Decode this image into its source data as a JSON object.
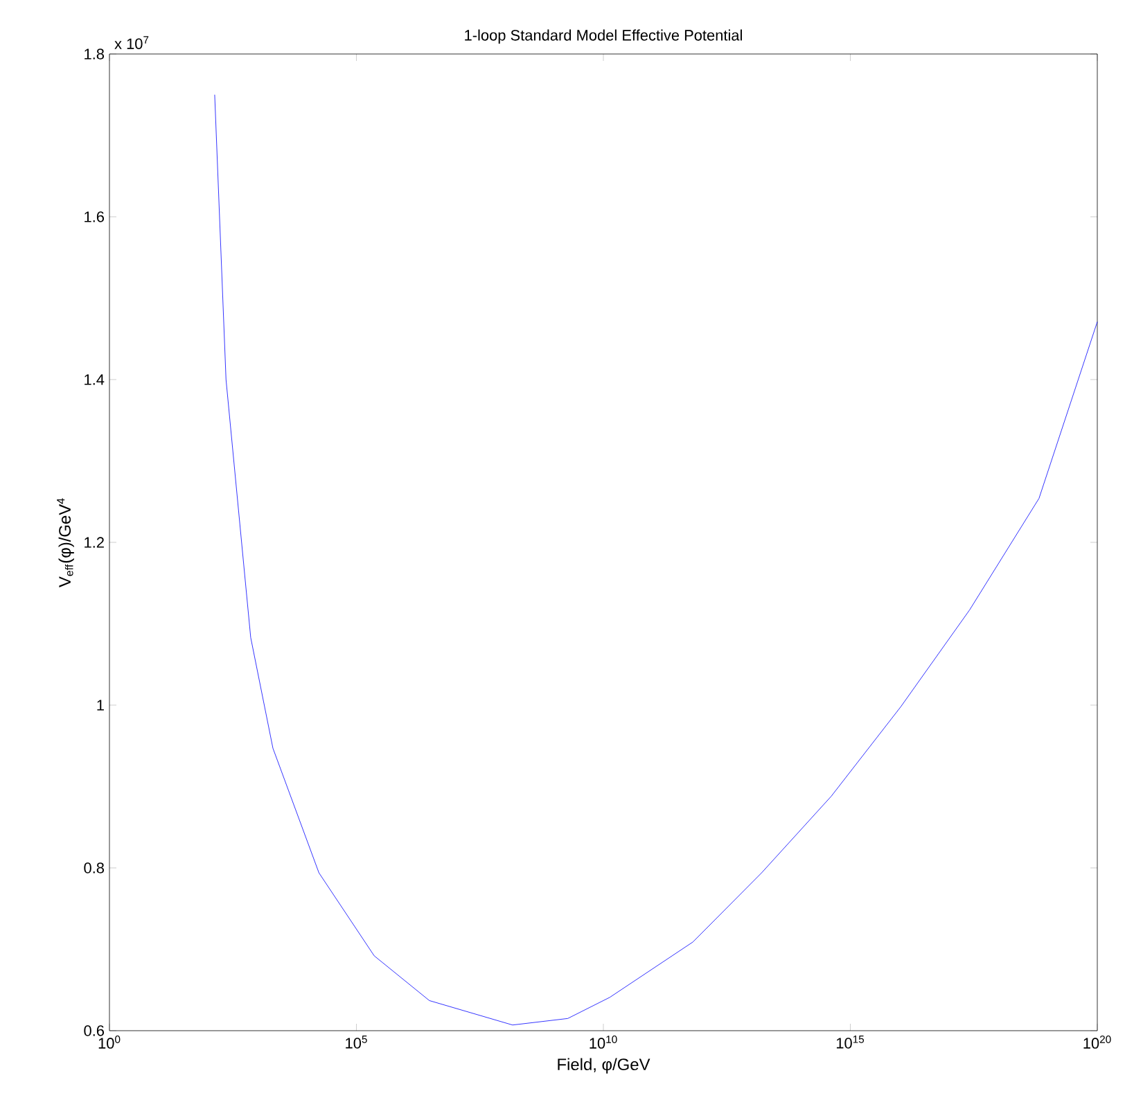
{
  "chart_data": {
    "type": "line",
    "title": "1-loop Standard Model Effective Potential",
    "xlabel": "Field, φ/GeV",
    "ylabel": "V$_{eff}$(φ)/GeV$^{4}$",
    "annotations": [
      "x 10$^{7}$"
    ],
    "log": "x",
    "grid": false,
    "marker": "none",
    "line_style": "solid",
    "x": [
      135,
      229,
      724,
      2040,
      17400,
      229000,
      3000000.0,
      145000000.0,
      1900000000.0,
      13500000000.0,
      650000000000.0,
      16000000000000.0,
      410000000000000.0,
      1.05e+16,
      2.6e+17,
      6.6e+18,
      1e+20
    ],
    "series": [
      {
        "color": "#0000ff",
        "values": [
          1.75,
          1.4,
          1.083,
          0.947,
          0.794,
          0.692,
          0.637,
          0.607,
          0.615,
          0.641,
          0.709,
          0.794,
          0.888,
          0.998,
          1.117,
          1.254,
          1.471
        ]
      }
    ],
    "xlim": [
      1,
      1e+20
    ],
    "ylim": [
      0.6,
      1.8
    ],
    "xticks": [
      {
        "value": 1,
        "label": "10$^{0}$"
      },
      {
        "value": 100000.0,
        "label": "10$^{5}$"
      },
      {
        "value": 10000000000.0,
        "label": "10$^{10}$"
      },
      {
        "value": 1000000000000000.0,
        "label": "10$^{15}$"
      },
      {
        "value": 1e+20,
        "label": "10$^{20}$"
      }
    ],
    "yticks": [
      0.6,
      0.8,
      1,
      1.2,
      1.4,
      1.6,
      1.8
    ]
  }
}
